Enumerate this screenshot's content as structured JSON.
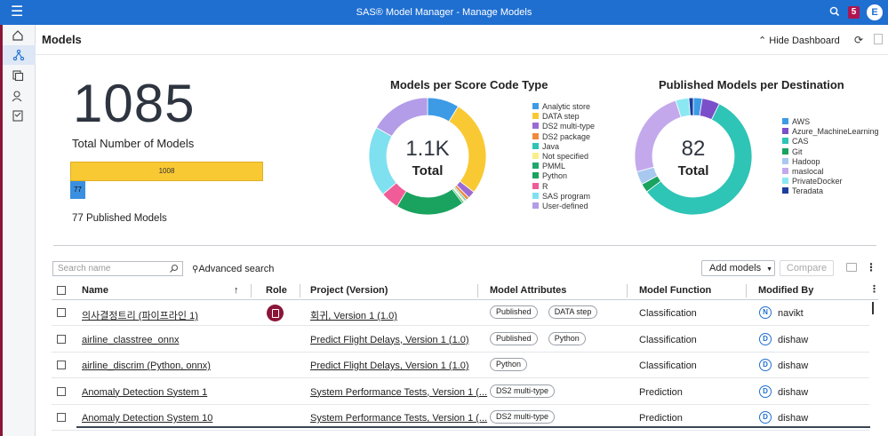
{
  "app": {
    "title": "SAS® Model Manager - Manage Models",
    "notification_count": "5",
    "user_initial": "E"
  },
  "header": {
    "title": "Models",
    "hide_dashboard": "Hide Dashboard"
  },
  "dashboard": {
    "total_number": "1085",
    "total_label": "Total Number of Models",
    "bar_total_value": "1008",
    "bar_published_value": "77",
    "published_label": "77 Published Models"
  },
  "chart_data": [
    {
      "type": "pie",
      "title": "Models per Score Code Type",
      "center_value": "1.1K",
      "center_label": "Total",
      "categories": [
        "Analytic store",
        "DATA step",
        "DS2 multi-type",
        "DS2 package",
        "Java",
        "Not specified",
        "PMML",
        "Python",
        "R",
        "SAS program",
        "User-defined"
      ],
      "values": [
        95,
        290,
        22,
        10,
        5,
        5,
        5,
        205,
        55,
        210,
        183
      ],
      "colors": [
        "#3d9be6",
        "#f9c934",
        "#9b6bd3",
        "#f08a3c",
        "#2ec4b6",
        "#f9ef8a",
        "#1ea86b",
        "#19a35e",
        "#ef5c98",
        "#7fe0f0",
        "#b39ce8"
      ],
      "legend_position": "right"
    },
    {
      "type": "pie",
      "title": "Published Models per Destination",
      "center_value": "82",
      "center_label": "Total",
      "categories": [
        "AWS",
        "Azure_MachineLearning",
        "CAS",
        "Git",
        "Hadoop",
        "maslocal",
        "PrivateDocker",
        "Teradata"
      ],
      "values": [
        2,
        4,
        47,
        2,
        3,
        20,
        3,
        1
      ],
      "colors": [
        "#3d9be6",
        "#7b4fc9",
        "#2ec4b6",
        "#19a35e",
        "#a9c8f0",
        "#c3a9ec",
        "#8be8f2",
        "#1c3f9e"
      ],
      "legend_position": "right"
    }
  ],
  "toolbar": {
    "search_placeholder": "Search name",
    "advanced_search": "Advanced search",
    "add_models": "Add models",
    "compare": "Compare"
  },
  "table": {
    "columns": [
      "Name",
      "Role",
      "Project (Version)",
      "Model Attributes",
      "Model Function",
      "Modified By"
    ],
    "rows": [
      {
        "name": "의사결정트리 (파이프라인 1)",
        "has_role": true,
        "project": "회귀, Version 1 (1.0)",
        "attributes": [
          "Published",
          "DATA step"
        ],
        "function": "Classification",
        "user_initial": "N",
        "modified_by": "navikt"
      },
      {
        "name": "airline_classtree_onnx",
        "has_role": false,
        "project": "Predict Flight Delays, Version 1 (1.0)",
        "attributes": [
          "Published",
          "Python"
        ],
        "function": "Classification",
        "user_initial": "D",
        "modified_by": "dishaw"
      },
      {
        "name": "airline_discrim (Python, onnx)",
        "has_role": false,
        "project": "Predict Flight Delays, Version 1 (1.0)",
        "attributes": [
          "Python"
        ],
        "function": "Classification",
        "user_initial": "D",
        "modified_by": "dishaw"
      },
      {
        "name": "Anomaly Detection System 1",
        "has_role": false,
        "project": "System Performance Tests, Version 1 (...",
        "attributes": [
          "DS2 multi-type"
        ],
        "function": "Prediction",
        "user_initial": "D",
        "modified_by": "dishaw"
      },
      {
        "name": "Anomaly Detection System 10",
        "has_role": false,
        "project": "System Performance Tests, Version 1 (...",
        "attributes": [
          "DS2 multi-type"
        ],
        "function": "Prediction",
        "user_initial": "D",
        "modified_by": "dishaw"
      }
    ]
  }
}
